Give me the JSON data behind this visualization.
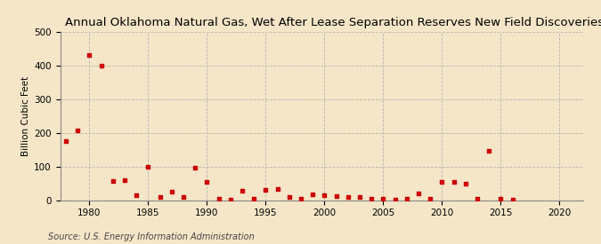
{
  "title": "Annual Oklahoma Natural Gas, Wet After Lease Separation Reserves New Field Discoveries",
  "ylabel": "Billion Cubic Feet",
  "source": "Source: U.S. Energy Information Administration",
  "background_color": "#f5e6c8",
  "marker_color": "#cc0000",
  "grid_color": "#aaaaaa",
  "xlim": [
    1977.5,
    2022
  ],
  "ylim": [
    0,
    500
  ],
  "yticks": [
    0,
    100,
    200,
    300,
    400,
    500
  ],
  "xticks": [
    1980,
    1985,
    1990,
    1995,
    2000,
    2005,
    2010,
    2015,
    2020
  ],
  "data": {
    "1978": 175,
    "1979": 207,
    "1980": 432,
    "1981": 398,
    "1982": 57,
    "1983": 58,
    "1984": 15,
    "1985": 100,
    "1986": 10,
    "1987": 25,
    "1988": 10,
    "1989": 95,
    "1990": 55,
    "1991": 5,
    "1992": 2,
    "1993": 28,
    "1994": 5,
    "1995": 30,
    "1996": 33,
    "1997": 8,
    "1998": 5,
    "1999": 18,
    "2000": 15,
    "2001": 12,
    "2002": 10,
    "2003": 8,
    "2004": 5,
    "2005": 3,
    "2006": 2,
    "2007": 3,
    "2008": 20,
    "2009": 3,
    "2010": 55,
    "2011": 55,
    "2012": 50,
    "2013": 5,
    "2014": 145,
    "2015": 5,
    "2016": 2
  },
  "title_fontsize": 9.5,
  "ylabel_fontsize": 7.5,
  "tick_fontsize": 7.5,
  "source_fontsize": 7
}
